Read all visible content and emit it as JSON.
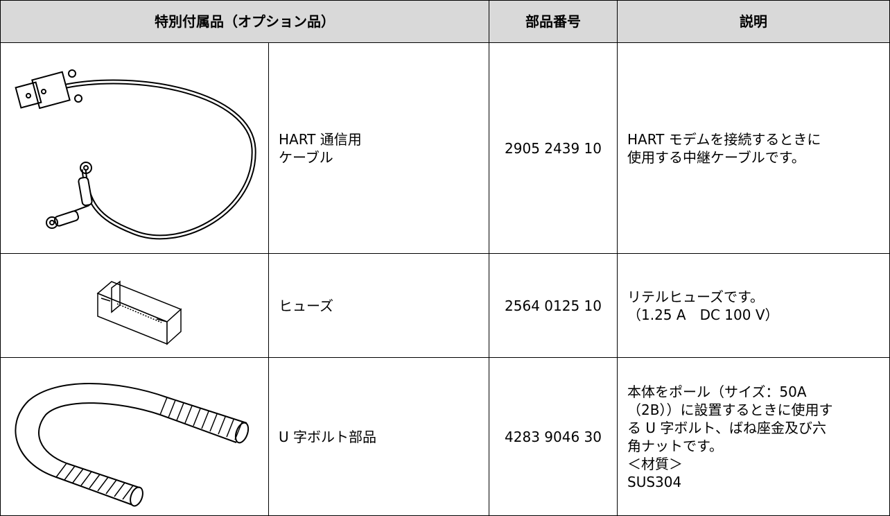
{
  "table": {
    "header": [
      "特別付属品（オプション品）",
      "部品番号",
      "説明"
    ],
    "rows": [
      {
        "name": [
          "HART 通信用",
          "ケーブル"
        ],
        "part_number": "2905 2439 10",
        "description": [
          "HART モデムを接続するときに",
          "使用する中継ケーブルです。"
        ]
      },
      {
        "name": [
          "ヒューズ"
        ],
        "part_number": "2564 0125 10",
        "description": [
          "リテルヒューズです。",
          "（1.25 A　DC 100 V）"
        ]
      },
      {
        "name": [
          "U 字ボルト部品"
        ],
        "part_number": "4283 9046 30",
        "description": [
          "本体をポール（サイズ：50A",
          "（2B））に設置するときに使用す",
          "る U 字ボルト、ばね座金及び六",
          "角ナットです。",
          "＜材質＞",
          "SUS304"
        ]
      }
    ]
  }
}
